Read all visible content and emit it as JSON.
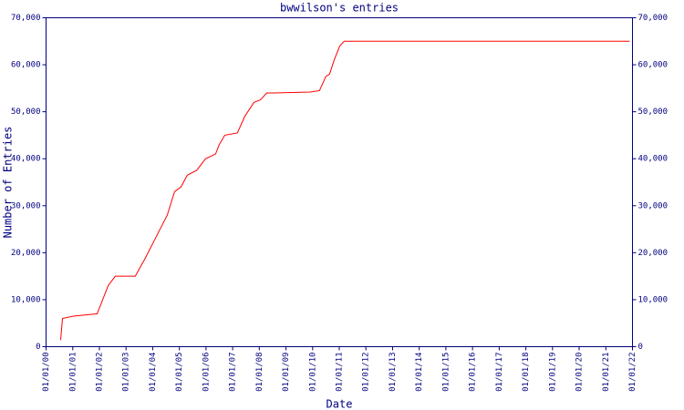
{
  "chart_data": {
    "type": "line",
    "title": "bwwilson's entries",
    "xlabel": "Date",
    "ylabel": "Number of Entries",
    "x": [
      "2000-07-19",
      "2000-08-13",
      "2001-01-10",
      "2001-12-01",
      "2002-02-15",
      "2002-05-01",
      "2002-08-07",
      "2003-05-08",
      "2003-08-04",
      "2003-09-10",
      "2004-04-11",
      "2004-07-19",
      "2004-10-27",
      "2005-01-23",
      "2005-04-20",
      "2005-08-24",
      "2005-12-27",
      "2006-05-12",
      "2006-07-01",
      "2006-09-15",
      "2007-03-07",
      "2007-06-16",
      "2007-10-20",
      "2008-01-15",
      "2008-04-12",
      "2008-07-20",
      "2009-12-01",
      "2010-04-05",
      "2010-07-01",
      "2010-08-21",
      "2010-10-23",
      "2011-01-08",
      "2011-03-10",
      "2021-11-24"
    ],
    "series": [
      {
        "name": "bwwilson",
        "color": "#ff0000",
        "values": [
          1400,
          6000,
          6500,
          7000,
          10000,
          13000,
          15000,
          15000,
          17500,
          18500,
          25000,
          28000,
          33000,
          34000,
          36500,
          37500,
          40000,
          41000,
          43000,
          45000,
          45500,
          49000,
          52000,
          52500,
          54000,
          54000,
          54200,
          54500,
          57500,
          58000,
          61000,
          64000,
          65000,
          65000
        ]
      }
    ],
    "xlim": [
      "2000-01-01",
      "2022-01-01"
    ],
    "xticks": [
      {
        "value": "2000-01-01",
        "label": "01/01/00"
      },
      {
        "value": "2001-01-01",
        "label": "01/01/01"
      },
      {
        "value": "2002-01-01",
        "label": "01/01/02"
      },
      {
        "value": "2003-01-01",
        "label": "01/01/03"
      },
      {
        "value": "2004-01-01",
        "label": "01/01/04"
      },
      {
        "value": "2005-01-01",
        "label": "01/01/05"
      },
      {
        "value": "2006-01-01",
        "label": "01/01/06"
      },
      {
        "value": "2007-01-01",
        "label": "01/01/07"
      },
      {
        "value": "2008-01-01",
        "label": "01/01/08"
      },
      {
        "value": "2009-01-01",
        "label": "01/01/09"
      },
      {
        "value": "2010-01-01",
        "label": "01/01/10"
      },
      {
        "value": "2011-01-01",
        "label": "01/01/11"
      },
      {
        "value": "2012-01-01",
        "label": "01/01/12"
      },
      {
        "value": "2013-01-01",
        "label": "01/01/13"
      },
      {
        "value": "2014-01-01",
        "label": "01/01/14"
      },
      {
        "value": "2015-01-01",
        "label": "01/01/15"
      },
      {
        "value": "2016-01-01",
        "label": "01/01/16"
      },
      {
        "value": "2017-01-01",
        "label": "01/01/17"
      },
      {
        "value": "2018-01-01",
        "label": "01/01/18"
      },
      {
        "value": "2019-01-01",
        "label": "01/01/19"
      },
      {
        "value": "2020-01-01",
        "label": "01/01/20"
      },
      {
        "value": "2021-01-01",
        "label": "01/01/21"
      },
      {
        "value": "2022-01-01",
        "label": "01/01/22"
      }
    ],
    "ylim": [
      0,
      70000
    ],
    "yticks": [
      0,
      {
        "value": 10000,
        "label": "10,000"
      },
      {
        "value": 20000,
        "label": "20,000"
      },
      {
        "value": 30000,
        "label": "30,000"
      },
      {
        "value": 40000,
        "label": "40,000"
      },
      {
        "value": 50000,
        "label": "50,000"
      },
      {
        "value": 60000,
        "label": "60,000"
      },
      {
        "value": 70000,
        "label": "70,000"
      }
    ]
  }
}
